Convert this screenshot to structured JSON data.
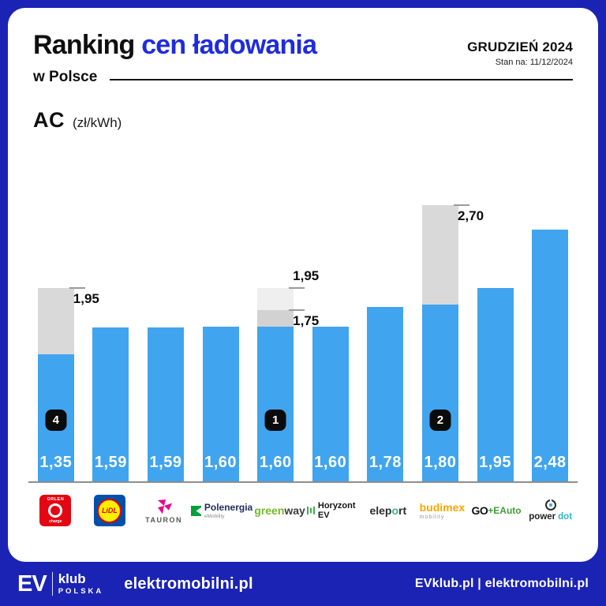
{
  "header": {
    "title_part1": "Ranking",
    "title_part2": "cen ładowania",
    "subtitle": "w Polsce",
    "period": "GRUDZIEŃ 2024",
    "as_of": "Stan na: 11/12/2024"
  },
  "section": {
    "label": "AC",
    "unit": "(zł/kWh)"
  },
  "colors": {
    "background_blue": "#1B23B4",
    "title_blue": "#1F2CDC",
    "bar_blue": "#41A4EE",
    "old_price_gray": "#D9D9D9",
    "old_price_gray_light": "#EFEFEF",
    "badge_black": "#0B0B0B",
    "axis_gray": "#8E8E8E"
  },
  "chart_data": {
    "type": "bar",
    "title": "Ranking cen ładowania w Polsce — AC",
    "unit": "zł/kWh",
    "ylim": [
      0,
      2.8
    ],
    "grid": false,
    "legend": false,
    "categories": [
      "Orlen Charge",
      "Lidl",
      "Tauron",
      "Polenergia eMobility",
      "GreenWay",
      "Horyzont EV",
      "Eleport",
      "Budimex Mobility",
      "GO+EAuto",
      "Power Dot"
    ],
    "values": [
      1.35,
      1.59,
      1.59,
      1.6,
      1.6,
      1.6,
      1.78,
      1.8,
      1.95,
      2.48
    ],
    "bars": [
      {
        "id": "orlen-charge",
        "category": "Orlen Charge",
        "value": 1.35,
        "value_label": "1,35",
        "badge": "4",
        "gray_segments": [
          {
            "from": 1.35,
            "to": 1.95,
            "color": "#D9D9D9"
          }
        ],
        "markers": [
          {
            "value": 1.95,
            "label": "1,95",
            "pos": "below"
          }
        ],
        "logo": {
          "kind": "orlen",
          "brand": "ORLEN",
          "sub": "charge"
        }
      },
      {
        "id": "lidl",
        "category": "Lidl",
        "value": 1.59,
        "value_label": "1,59",
        "logo": {
          "kind": "lidl",
          "brand": "LiDL"
        }
      },
      {
        "id": "tauron",
        "category": "Tauron",
        "value": 1.59,
        "value_label": "1,59",
        "logo": {
          "kind": "tauron",
          "brand": "TAURON"
        }
      },
      {
        "id": "polenergia",
        "category": "Polenergia eMobility",
        "value": 1.6,
        "value_label": "1,60",
        "logo": {
          "kind": "polenergia",
          "brand": "Polenergia",
          "sub": "eMobility"
        }
      },
      {
        "id": "greenway",
        "category": "GreenWay",
        "value": 1.6,
        "value_label": "1,60",
        "badge": "1",
        "gray_segments": [
          {
            "from": 1.6,
            "to": 1.75,
            "color": "#D2D2D2"
          },
          {
            "from": 1.75,
            "to": 1.95,
            "color": "#EFEFEF"
          }
        ],
        "markers": [
          {
            "value": 1.95,
            "label": "1,95",
            "pos": "above"
          },
          {
            "value": 1.75,
            "label": "1,75",
            "pos": "below"
          }
        ],
        "logo": {
          "kind": "greenway",
          "part1": "green",
          "part2": "way"
        }
      },
      {
        "id": "horyzont-ev",
        "category": "Horyzont EV",
        "value": 1.6,
        "value_label": "1,60",
        "logo": {
          "kind": "horyzont",
          "brand": "Horyzont EV"
        }
      },
      {
        "id": "eleport",
        "category": "Eleport",
        "value": 1.78,
        "value_label": "1,78",
        "logo": {
          "kind": "eleport",
          "part1": "elep",
          "part2": "o",
          "part3": "rt"
        }
      },
      {
        "id": "budimex-mobility",
        "category": "Budimex Mobility",
        "value": 1.8,
        "value_label": "1,80",
        "badge": "2",
        "gray_segments": [
          {
            "from": 1.8,
            "to": 2.7,
            "color": "#D9D9D9"
          }
        ],
        "markers": [
          {
            "value": 2.7,
            "label": "2,70",
            "pos": "below"
          }
        ],
        "logo": {
          "kind": "budimex",
          "brand": "budimex",
          "sub": "mobility"
        }
      },
      {
        "id": "go-eauto",
        "category": "GO+EAuto",
        "value": 1.95,
        "value_label": "1,95",
        "logo": {
          "kind": "goeauto",
          "part1": "GO",
          "part2": "+EAuto"
        }
      },
      {
        "id": "power-dot",
        "category": "Power Dot",
        "value": 2.48,
        "value_label": "2,48",
        "logo": {
          "kind": "powerdot",
          "part1": "power",
          "part2": "dot"
        }
      }
    ]
  },
  "footer": {
    "brand_ev": "EV",
    "brand_klub": "klub",
    "brand_polska": "POLSKA",
    "site": "elektromobilni.pl",
    "right": "EVklub.pl  |  elektromobilni.pl"
  }
}
